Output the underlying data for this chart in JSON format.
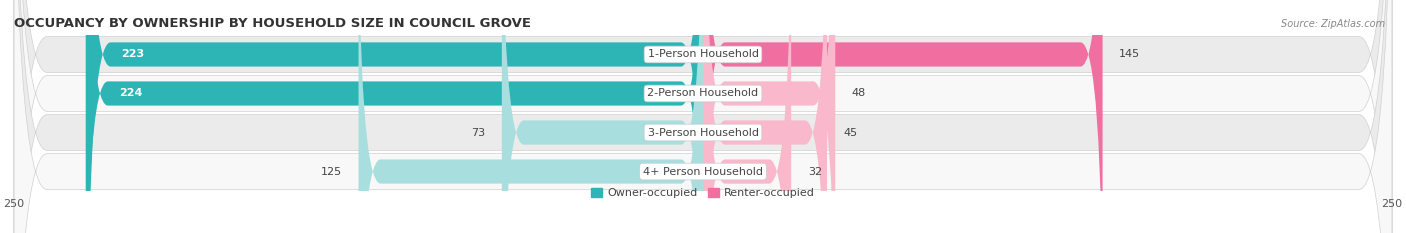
{
  "title": "OCCUPANCY BY OWNERSHIP BY HOUSEHOLD SIZE IN COUNCIL GROVE",
  "source": "Source: ZipAtlas.com",
  "categories": [
    "1-Person Household",
    "2-Person Household",
    "3-Person Household",
    "4+ Person Household"
  ],
  "owner_values": [
    223,
    224,
    73,
    125
  ],
  "renter_values": [
    145,
    48,
    45,
    32
  ],
  "owner_color": "#2db5b5",
  "renter_color": "#f06fa0",
  "owner_color_light": "#a8dede",
  "renter_color_light": "#f9b8cc",
  "owner_label": "Owner-occupied",
  "renter_label": "Renter-occupied",
  "axis_max": 250,
  "bar_height": 0.62,
  "row_bg_light": "#f2f2f2",
  "row_bg_dark": "#e0e0e0",
  "title_fontsize": 9.5,
  "label_fontsize": 8,
  "tick_fontsize": 8,
  "legend_fontsize": 8,
  "source_fontsize": 7
}
